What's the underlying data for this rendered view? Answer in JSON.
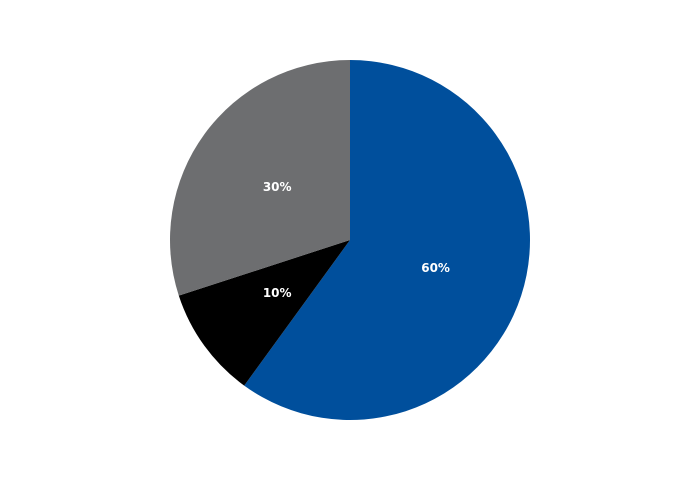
{
  "chart_data": {
    "type": "pie",
    "title": "",
    "start": "top",
    "direction": "clockwise",
    "slices": [
      {
        "value": 60,
        "label": "60%",
        "color": "#004f9c"
      },
      {
        "value": 10,
        "label": "10%",
        "color": "#000000"
      },
      {
        "value": 30,
        "label": "30%",
        "color": "#6d6e70"
      }
    ],
    "legend": "none"
  }
}
